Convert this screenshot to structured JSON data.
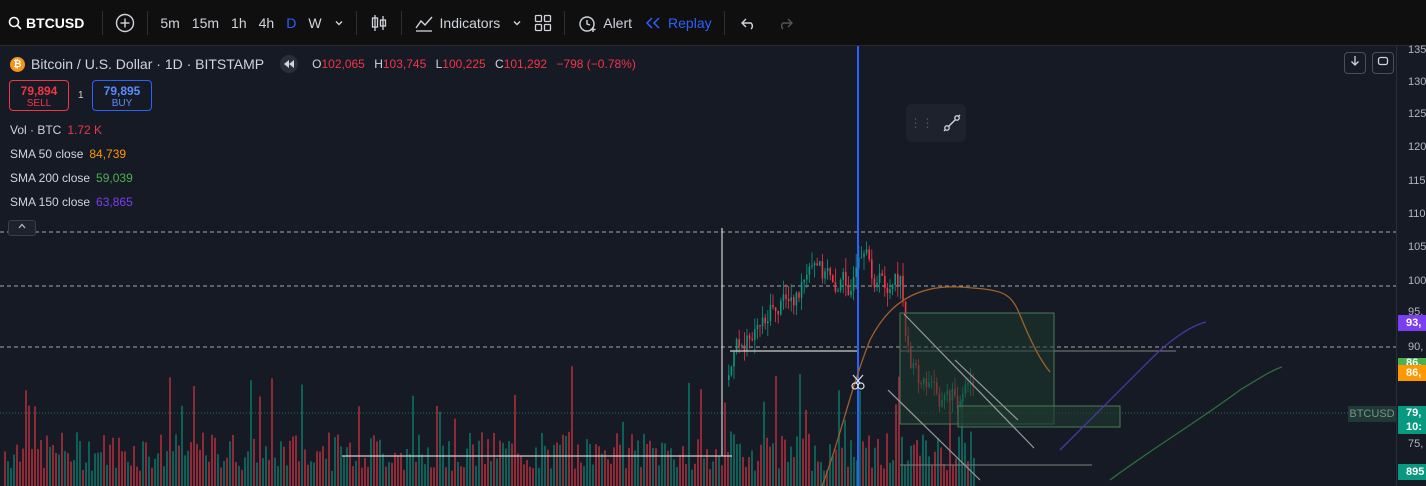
{
  "toolbar": {
    "symbol": "BTCUSD",
    "intervals": [
      "5m",
      "15m",
      "1h",
      "4h",
      "D",
      "W"
    ],
    "active_interval": "D",
    "indicators_label": "Indicators",
    "alert_label": "Alert",
    "replay_label": "Replay"
  },
  "header": {
    "title": "Bitcoin / U.S. Dollar · 1D · BITSTAMP",
    "ohlc": [
      {
        "k": "O",
        "v": "102,065"
      },
      {
        "k": "H",
        "v": "103,745"
      },
      {
        "k": "L",
        "v": "100,225"
      },
      {
        "k": "C",
        "v": "101,292"
      }
    ],
    "change": "−798 (−0.78%)"
  },
  "trade": {
    "sell_price": "79,894",
    "sell_label": "SELL",
    "spread": "1",
    "buy_price": "79,895",
    "buy_label": "BUY"
  },
  "indicators": [
    {
      "name": "Vol · BTC",
      "value": "1.72 K",
      "color": "#f23645"
    },
    {
      "name": "SMA 50 close",
      "value": "84,739",
      "color": "#ff9800"
    },
    {
      "name": "SMA 200 close",
      "value": "59,039",
      "color": "#4caf50"
    },
    {
      "name": "SMA 150 close",
      "value": "63,865",
      "color": "#7b3ff2"
    }
  ],
  "price_axis": {
    "ticks": [
      "135",
      "130",
      "125",
      "120",
      "115",
      "110",
      "105",
      "100",
      "95,",
      "90,",
      "75,"
    ],
    "tags": [
      {
        "text": "93,",
        "color": "#7b3ff2"
      },
      {
        "text": "86,",
        "color": "#4caf50"
      },
      {
        "text": "86,",
        "color": "#ff9800"
      },
      {
        "text": "79,",
        "color": "#089981"
      },
      {
        "text": "10:",
        "color": "#089981"
      },
      {
        "text": "895",
        "color": "#089981"
      }
    ],
    "symbol_label": "BTCUSD"
  },
  "colors": {
    "up": "#089981",
    "down": "#f23645",
    "accent": "#2962ff"
  }
}
